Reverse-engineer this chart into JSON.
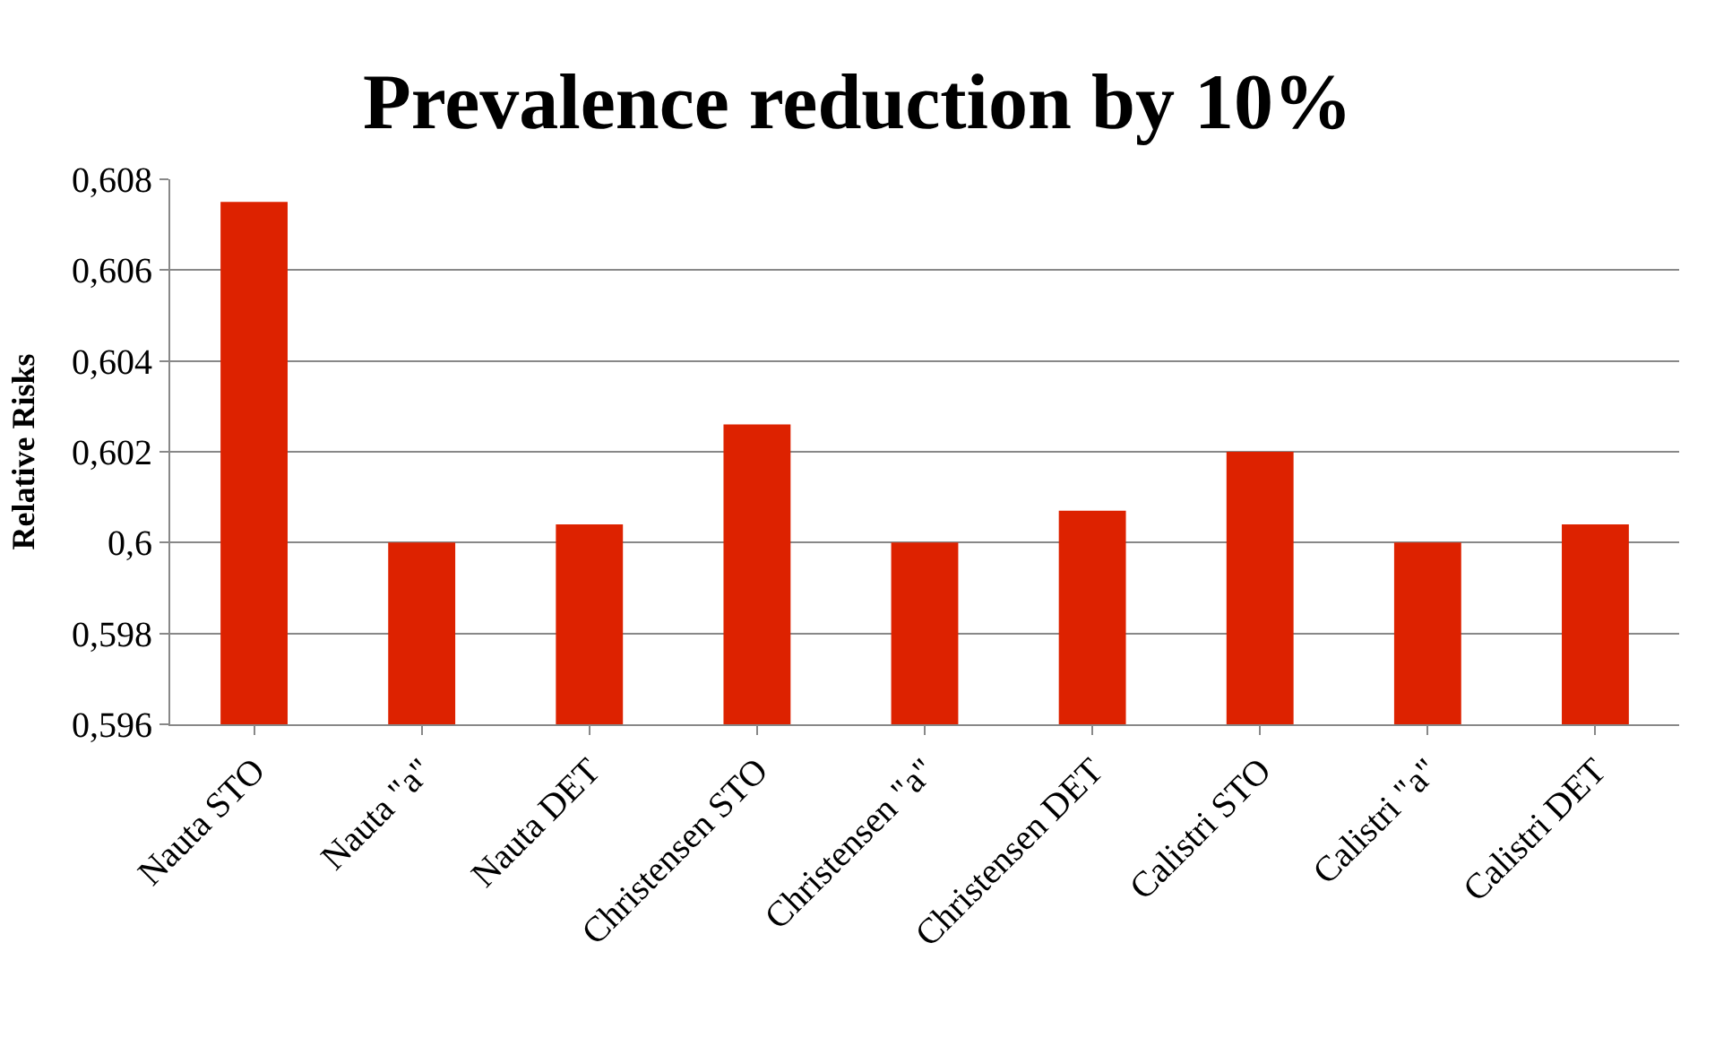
{
  "chart_data": {
    "type": "bar",
    "title": "Prevalence reduction by 10%",
    "ylabel": "Relative Risks",
    "categories": [
      "Nauta STO",
      "Nauta \"a\"",
      "Nauta DET",
      "Christensen STO",
      "Christensen \"a\"",
      "Christensen DET",
      "Calistri STO",
      "Calistri \"a\"",
      "Calistri DET"
    ],
    "values": [
      0.6075,
      0.6,
      0.6004,
      0.6026,
      0.6,
      0.6007,
      0.602,
      0.6,
      0.6004
    ],
    "color": "#dd2200",
    "ylim": [
      0.596,
      0.608
    ],
    "yticks": [
      {
        "value": 0.596,
        "label": "0,596"
      },
      {
        "value": 0.598,
        "label": "0,598"
      },
      {
        "value": 0.6,
        "label": "0,6"
      },
      {
        "value": 0.602,
        "label": "0,602"
      },
      {
        "value": 0.604,
        "label": "0,604"
      },
      {
        "value": 0.606,
        "label": "0,606"
      },
      {
        "value": 0.608,
        "label": "0,608"
      }
    ],
    "grid": "y",
    "legend": false
  }
}
